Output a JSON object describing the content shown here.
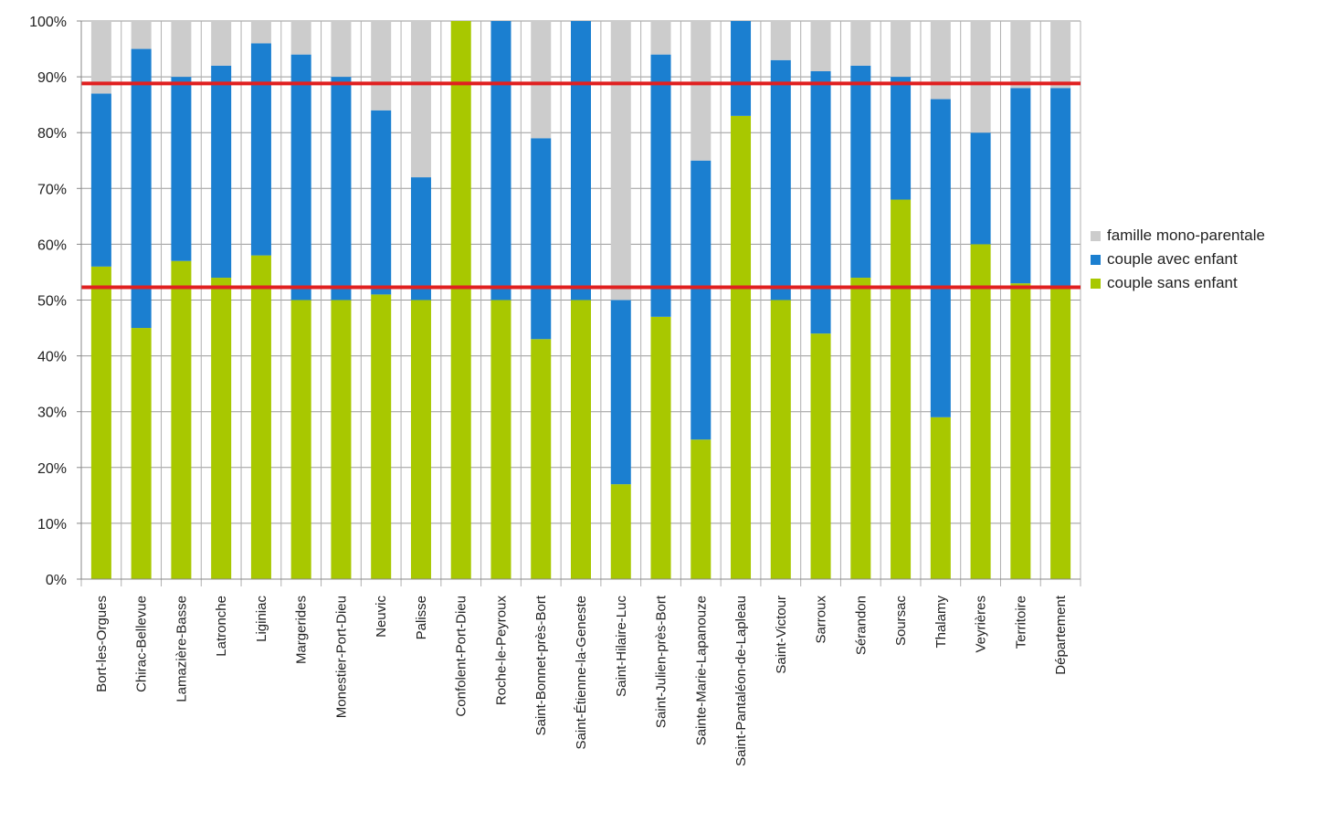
{
  "chart_data": {
    "type": "bar",
    "stacked": true,
    "percent_axis": true,
    "ylim": [
      0,
      100
    ],
    "yticks": [
      "0%",
      "10%",
      "20%",
      "30%",
      "40%",
      "50%",
      "60%",
      "70%",
      "80%",
      "90%",
      "100%"
    ],
    "grid": true,
    "legend_position": "right",
    "categories": [
      "Bort-les-Orgues",
      "Chirac-Bellevue",
      "Lamazière-Basse",
      "Latronche",
      "Liginiac",
      "Margerides",
      "Monestier-Port-Dieu",
      "Neuvic",
      "Palisse",
      "Confolent-Port-Dieu",
      "Roche-le-Peyroux",
      "Saint-Bonnet-près-Bort",
      "Saint-Étienne-la-Geneste",
      "Saint-Hilaire-Luc",
      "Saint-Julien-près-Bort",
      "Sainte-Marie-Lapanouze",
      "Saint-Pantaléon-de-Lapleau",
      "Saint-Victour",
      "Sarroux",
      "Sérandon",
      "Soursac",
      "Thalamy",
      "Veyrières",
      "Territoire",
      "Département"
    ],
    "series": [
      {
        "name": "couple sans enfant",
        "color": "#a8c800",
        "values": [
          56,
          45,
          57,
          54,
          58,
          50,
          50,
          51,
          50,
          100,
          50,
          43,
          50,
          17,
          47,
          25,
          83,
          50,
          44,
          54,
          68,
          29,
          60,
          53,
          52
        ]
      },
      {
        "name": "couple avec enfant",
        "color": "#1b7fd0",
        "values": [
          31,
          50,
          33,
          38,
          38,
          44,
          40,
          33,
          22,
          0,
          50,
          36,
          50,
          33,
          47,
          50,
          17,
          43,
          47,
          38,
          22,
          57,
          20,
          35,
          36
        ]
      },
      {
        "name": "famille mono-parentale",
        "color": "#cccccc",
        "values": [
          13,
          5,
          10,
          8,
          4,
          6,
          10,
          16,
          28,
          0,
          0,
          21,
          0,
          50,
          6,
          25,
          0,
          7,
          9,
          8,
          10,
          14,
          20,
          12,
          12
        ]
      }
    ],
    "reference_lines": [
      {
        "value": 88.8,
        "color": "#e02020"
      },
      {
        "value": 52.3,
        "color": "#e02020"
      }
    ]
  },
  "legend": {
    "items": [
      {
        "label": "famille mono-parentale",
        "color": "#cccccc"
      },
      {
        "label": "couple avec enfant",
        "color": "#1b7fd0"
      },
      {
        "label": "couple sans enfant",
        "color": "#a8c800"
      }
    ]
  }
}
